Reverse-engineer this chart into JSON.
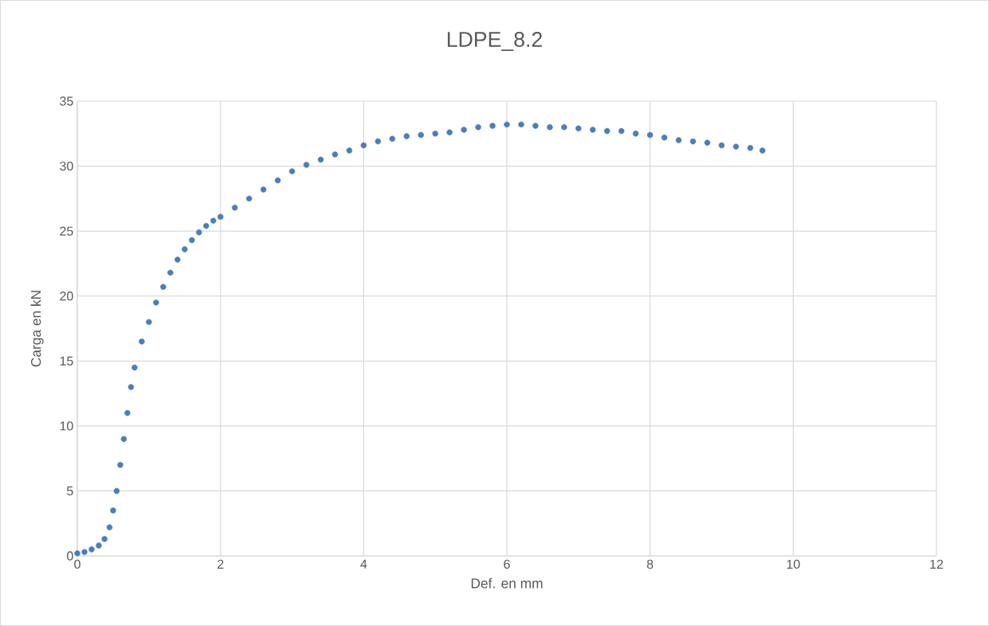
{
  "chart_data": {
    "type": "scatter",
    "title": "LDPE_8.2",
    "xlabel": "Def. en mm",
    "ylabel": "Carga en kN",
    "xlim": [
      0,
      12
    ],
    "xticks": [
      0,
      2,
      4,
      6,
      8,
      10,
      12
    ],
    "ylim": [
      0,
      35
    ],
    "yticks": [
      0,
      5,
      10,
      15,
      20,
      25,
      30,
      35
    ],
    "grid": true,
    "marker": "circle",
    "series": [
      {
        "color": "#4a7ebb",
        "x": [
          0,
          0.1,
          0.2,
          0.3,
          0.38,
          0.45,
          0.5,
          0.55,
          0.6,
          0.65,
          0.7,
          0.75,
          0.8,
          0.9,
          1.0,
          1.1,
          1.2,
          1.3,
          1.4,
          1.5,
          1.6,
          1.7,
          1.8,
          1.9,
          2.0,
          2.2,
          2.4,
          2.6,
          2.8,
          3.0,
          3.2,
          3.4,
          3.6,
          3.8,
          4.0,
          4.2,
          4.4,
          4.6,
          4.8,
          5.0,
          5.2,
          5.4,
          5.6,
          5.8,
          6.0,
          6.2,
          6.4,
          6.6,
          6.8,
          7.0,
          7.2,
          7.4,
          7.6,
          7.8,
          8.0,
          8.2,
          8.4,
          8.6,
          8.8,
          9.0,
          9.2,
          9.4,
          9.57
        ],
        "values": [
          0.2,
          0.3,
          0.5,
          0.8,
          1.3,
          2.2,
          3.5,
          5,
          7,
          9,
          11,
          13,
          14.5,
          16.5,
          18,
          19.5,
          20.7,
          21.8,
          22.8,
          23.6,
          24.3,
          24.9,
          25.4,
          25.8,
          26.1,
          26.8,
          27.5,
          28.2,
          28.9,
          29.6,
          30.1,
          30.5,
          30.9,
          31.2,
          31.6,
          31.9,
          32.1,
          32.3,
          32.4,
          32.5,
          32.6,
          32.8,
          33.0,
          33.1,
          33.2,
          33.2,
          33.1,
          33.0,
          33.0,
          32.9,
          32.8,
          32.7,
          32.7,
          32.5,
          32.4,
          32.2,
          32.0,
          31.9,
          31.8,
          31.6,
          31.5,
          31.4,
          31.2
        ]
      }
    ]
  }
}
